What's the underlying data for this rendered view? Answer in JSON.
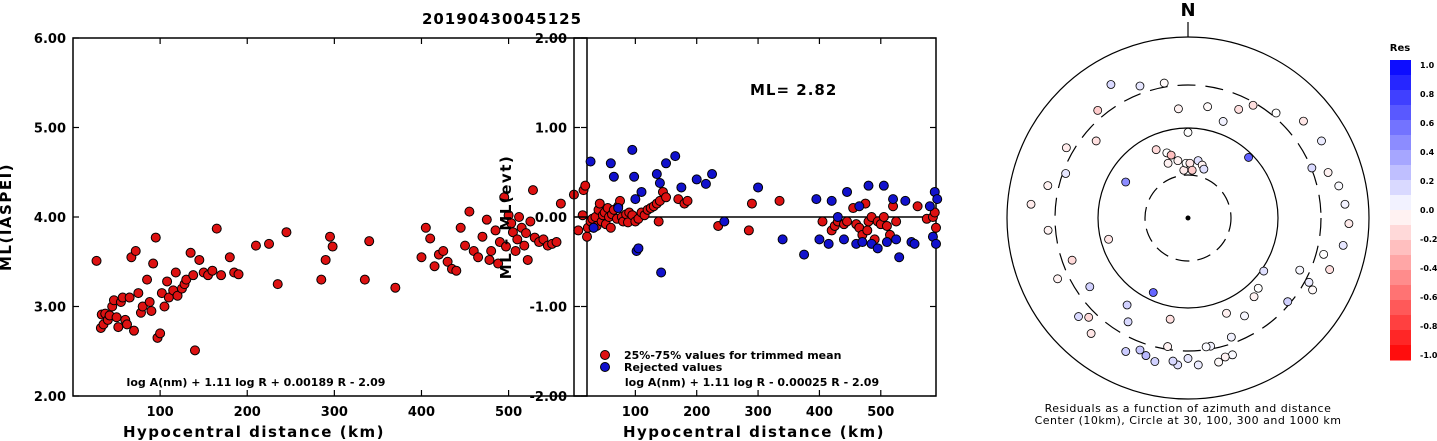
{
  "title": "20190430045125",
  "left_panel": {
    "ylabel": "ML(IASPEI)",
    "xlabel": "Hypocentral distance (km)",
    "formula": "log A(nm) + 1.11 log R + 0.00189 R - 2.09",
    "xticks": [
      "100",
      "200",
      "300",
      "400",
      "500"
    ],
    "yticks": [
      "2.00",
      "3.00",
      "4.00",
      "5.00",
      "6.00"
    ]
  },
  "middle_panel": {
    "ylabel": "ML - ML(evt)",
    "xlabel": "Hypocentral distance (km)",
    "ml_label": "ML= 2.82",
    "legend_trimmed": "25%-75% values for trimmed mean",
    "legend_rejected": "Rejected values",
    "formula": "log A(nm) + 1.11 log R - 0.00025 R - 2.09",
    "xticks": [
      "100",
      "200",
      "300",
      "400",
      "500"
    ],
    "yticks": [
      "-2.00",
      "-1.00",
      "0.00",
      "1.00",
      "2.00"
    ]
  },
  "polar_panel": {
    "north": "N",
    "caption_line1": "Residuals as a function of azimuth and distance",
    "caption_line2": "Center (10km), Circle at 30, 100, 300 and 1000 km"
  },
  "colorbar": {
    "title": "Res",
    "ticks": [
      "1.0",
      "0.8",
      "0.6",
      "0.4",
      "0.2",
      "0.0",
      "-0.2",
      "-0.4",
      "-0.6",
      "-0.8",
      "-1.0"
    ]
  },
  "colors": {
    "trimmed": "#dd1111",
    "rejected": "#1111cc",
    "positive": "#0000ff",
    "negative": "#ff0000"
  },
  "chart_data": [
    {
      "type": "scatter",
      "name": "ML(IASPEI) vs distance",
      "xlim": [
        0,
        590
      ],
      "ylim": [
        2.0,
        6.0
      ],
      "points": [
        [
          27,
          3.51
        ],
        [
          32,
          2.76
        ],
        [
          33,
          2.91
        ],
        [
          35,
          2.8
        ],
        [
          37,
          2.92
        ],
        [
          40,
          2.85
        ],
        [
          42,
          2.9
        ],
        [
          45,
          3.0
        ],
        [
          47,
          3.07
        ],
        [
          50,
          2.88
        ],
        [
          52,
          2.77
        ],
        [
          55,
          3.05
        ],
        [
          57,
          3.1
        ],
        [
          60,
          2.85
        ],
        [
          62,
          2.8
        ],
        [
          65,
          3.1
        ],
        [
          67,
          3.55
        ],
        [
          70,
          2.73
        ],
        [
          72,
          3.62
        ],
        [
          75,
          3.15
        ],
        [
          78,
          2.93
        ],
        [
          80,
          3.0
        ],
        [
          85,
          3.3
        ],
        [
          88,
          3.05
        ],
        [
          90,
          2.95
        ],
        [
          92,
          3.48
        ],
        [
          95,
          3.77
        ],
        [
          97,
          2.65
        ],
        [
          100,
          2.7
        ],
        [
          102,
          3.15
        ],
        [
          105,
          3.0
        ],
        [
          108,
          3.28
        ],
        [
          110,
          3.1
        ],
        [
          115,
          3.18
        ],
        [
          118,
          3.38
        ],
        [
          120,
          3.12
        ],
        [
          125,
          3.2
        ],
        [
          128,
          3.25
        ],
        [
          130,
          3.3
        ],
        [
          135,
          3.6
        ],
        [
          138,
          3.35
        ],
        [
          140,
          2.51
        ],
        [
          145,
          3.52
        ],
        [
          150,
          3.38
        ],
        [
          155,
          3.35
        ],
        [
          160,
          3.4
        ],
        [
          165,
          3.87
        ],
        [
          170,
          3.35
        ],
        [
          180,
          3.55
        ],
        [
          185,
          3.38
        ],
        [
          190,
          3.36
        ],
        [
          210,
          3.68
        ],
        [
          225,
          3.7
        ],
        [
          235,
          3.25
        ],
        [
          245,
          3.83
        ],
        [
          285,
          3.3
        ],
        [
          290,
          3.52
        ],
        [
          295,
          3.78
        ],
        [
          298,
          3.67
        ],
        [
          335,
          3.3
        ],
        [
          340,
          3.73
        ],
        [
          370,
          3.21
        ],
        [
          400,
          3.55
        ],
        [
          405,
          3.88
        ],
        [
          410,
          3.76
        ],
        [
          415,
          3.45
        ],
        [
          420,
          3.58
        ],
        [
          425,
          3.62
        ],
        [
          430,
          3.5
        ],
        [
          435,
          3.42
        ],
        [
          440,
          3.4
        ],
        [
          445,
          3.88
        ],
        [
          450,
          3.68
        ],
        [
          455,
          4.06
        ],
        [
          460,
          3.62
        ],
        [
          465,
          3.55
        ],
        [
          470,
          3.78
        ],
        [
          475,
          3.97
        ],
        [
          478,
          3.52
        ],
        [
          480,
          3.62
        ],
        [
          485,
          3.85
        ],
        [
          488,
          3.48
        ],
        [
          490,
          3.72
        ],
        [
          495,
          4.22
        ],
        [
          497,
          3.67
        ],
        [
          500,
          4.02
        ],
        [
          503,
          3.93
        ],
        [
          505,
          3.83
        ],
        [
          508,
          3.62
        ],
        [
          510,
          3.75
        ],
        [
          512,
          4.0
        ],
        [
          515,
          3.88
        ],
        [
          518,
          3.68
        ],
        [
          520,
          3.82
        ],
        [
          522,
          3.52
        ],
        [
          525,
          3.95
        ],
        [
          528,
          4.3
        ],
        [
          530,
          3.77
        ],
        [
          535,
          3.72
        ],
        [
          540,
          3.75
        ],
        [
          545,
          3.68
        ],
        [
          550,
          3.7
        ],
        [
          555,
          3.72
        ],
        [
          560,
          4.15
        ],
        [
          575,
          4.25
        ],
        [
          580,
          3.85
        ],
        [
          585,
          4.02
        ],
        [
          586,
          4.3
        ],
        [
          588,
          4.35
        ],
        [
          590,
          3.78
        ],
        [
          591,
          3.88
        ]
      ]
    },
    {
      "type": "scatter",
      "name": "ML - ML(evt) vs distance",
      "xlim": [
        0,
        590
      ],
      "ylim": [
        -2.0,
        2.0
      ],
      "trimmed": [
        [
          27,
          -0.05
        ],
        [
          30,
          -0.02
        ],
        [
          32,
          -0.12
        ],
        [
          35,
          0.0
        ],
        [
          37,
          -0.1
        ],
        [
          40,
          0.08
        ],
        [
          42,
          0.15
        ],
        [
          45,
          -0.05
        ],
        [
          47,
          0.02
        ],
        [
          50,
          0.05
        ],
        [
          52,
          -0.08
        ],
        [
          55,
          0.1
        ],
        [
          57,
          0.0
        ],
        [
          60,
          -0.12
        ],
        [
          62,
          0.03
        ],
        [
          65,
          0.08
        ],
        [
          70,
          -0.02
        ],
        [
          72,
          0.12
        ],
        [
          75,
          0.18
        ],
        [
          78,
          0.0
        ],
        [
          80,
          -0.05
        ],
        [
          85,
          0.03
        ],
        [
          88,
          -0.06
        ],
        [
          90,
          0.05
        ],
        [
          95,
          0.02
        ],
        [
          100,
          -0.05
        ],
        [
          105,
          -0.02
        ],
        [
          110,
          0.05
        ],
        [
          115,
          0.02
        ],
        [
          120,
          0.08
        ],
        [
          125,
          0.1
        ],
        [
          130,
          0.12
        ],
        [
          135,
          0.15
        ],
        [
          138,
          -0.05
        ],
        [
          140,
          0.18
        ],
        [
          145,
          0.28
        ],
        [
          150,
          0.22
        ],
        [
          170,
          0.2
        ],
        [
          180,
          0.15
        ],
        [
          185,
          0.18
        ],
        [
          235,
          -0.1
        ],
        [
          285,
          -0.15
        ],
        [
          290,
          0.15
        ],
        [
          335,
          0.18
        ],
        [
          405,
          -0.05
        ],
        [
          420,
          -0.15
        ],
        [
          425,
          -0.1
        ],
        [
          430,
          -0.05
        ],
        [
          440,
          -0.08
        ],
        [
          445,
          -0.05
        ],
        [
          455,
          0.1
        ],
        [
          460,
          -0.08
        ],
        [
          465,
          -0.12
        ],
        [
          470,
          -0.2
        ],
        [
          475,
          0.15
        ],
        [
          478,
          -0.15
        ],
        [
          480,
          -0.05
        ],
        [
          485,
          0.0
        ],
        [
          490,
          -0.25
        ],
        [
          495,
          -0.05
        ],
        [
          500,
          -0.08
        ],
        [
          505,
          0.0
        ],
        [
          510,
          -0.1
        ],
        [
          515,
          -0.2
        ],
        [
          520,
          0.12
        ],
        [
          525,
          -0.05
        ],
        [
          560,
          0.12
        ],
        [
          575,
          -0.02
        ],
        [
          585,
          0.0
        ],
        [
          588,
          0.05
        ],
        [
          590,
          -0.12
        ]
      ],
      "rejected": [
        [
          27,
          0.62
        ],
        [
          32,
          -0.12
        ],
        [
          60,
          0.6
        ],
        [
          65,
          0.45
        ],
        [
          72,
          0.1
        ],
        [
          95,
          0.75
        ],
        [
          98,
          0.45
        ],
        [
          100,
          0.2
        ],
        [
          102,
          -0.38
        ],
        [
          105,
          -0.35
        ],
        [
          110,
          0.28
        ],
        [
          135,
          0.48
        ],
        [
          140,
          0.38
        ],
        [
          142,
          -0.62
        ],
        [
          150,
          0.6
        ],
        [
          165,
          0.68
        ],
        [
          175,
          0.33
        ],
        [
          200,
          0.42
        ],
        [
          215,
          0.37
        ],
        [
          225,
          0.48
        ],
        [
          245,
          -0.05
        ],
        [
          300,
          0.33
        ],
        [
          340,
          -0.25
        ],
        [
          375,
          -0.42
        ],
        [
          395,
          0.2
        ],
        [
          400,
          -0.25
        ],
        [
          415,
          -0.3
        ],
        [
          420,
          0.18
        ],
        [
          430,
          0.0
        ],
        [
          440,
          -0.25
        ],
        [
          445,
          0.28
        ],
        [
          460,
          -0.3
        ],
        [
          465,
          0.12
        ],
        [
          470,
          -0.28
        ],
        [
          480,
          0.35
        ],
        [
          485,
          -0.3
        ],
        [
          495,
          -0.35
        ],
        [
          505,
          0.35
        ],
        [
          510,
          -0.28
        ],
        [
          520,
          0.2
        ],
        [
          525,
          -0.25
        ],
        [
          530,
          -0.45
        ],
        [
          540,
          0.18
        ],
        [
          550,
          -0.28
        ],
        [
          555,
          -0.3
        ],
        [
          580,
          0.12
        ],
        [
          585,
          -0.22
        ],
        [
          588,
          0.28
        ],
        [
          590,
          -0.3
        ],
        [
          592,
          0.2
        ]
      ]
    },
    {
      "type": "scatter",
      "name": "Residuals vs azimuth and distance",
      "points": [
        [
          355,
          32
        ],
        [
          10,
          33
        ],
        [
          25,
          35
        ],
        [
          40,
          40
        ],
        [
          50,
          44
        ],
        [
          60,
          45
        ],
        [
          68,
          39
        ],
        [
          72,
          43
        ],
        [
          78,
          45
        ],
        [
          85,
          46
        ],
        [
          92,
          47
        ],
        [
          100,
          46
        ],
        [
          105,
          41
        ],
        [
          110,
          44
        ],
        [
          115,
          36
        ],
        [
          118,
          40
        ],
        [
          120,
          42
        ],
        [
          125,
          27
        ],
        [
          130,
          38
        ],
        [
          135,
          29
        ],
        [
          140,
          30
        ],
        [
          150,
          33
        ],
        [
          158,
          30
        ],
        [
          160,
          37
        ],
        [
          162,
          42
        ],
        [
          165,
          42
        ],
        [
          168,
          43
        ],
        [
          170,
          38
        ],
        [
          172,
          38
        ],
        [
          176,
          43
        ],
        [
          180,
          41
        ],
        [
          184,
          43
        ],
        [
          186,
          42
        ],
        [
          189,
          38
        ],
        [
          193,
          43
        ],
        [
          197,
          42
        ],
        [
          200,
          41
        ],
        [
          205,
          43
        ],
        [
          210,
          35
        ],
        [
          215,
          31
        ],
        [
          220,
          44
        ],
        [
          225,
          41
        ],
        [
          228,
          43
        ],
        [
          235,
          35
        ],
        [
          245,
          42
        ],
        [
          250,
          36
        ],
        [
          255,
          24
        ],
        [
          265,
          41
        ],
        [
          275,
          46
        ],
        [
          283,
          42
        ],
        [
          290,
          38
        ],
        [
          300,
          41
        ],
        [
          310,
          35
        ],
        [
          320,
          41
        ],
        [
          330,
          45
        ],
        [
          335,
          22
        ],
        [
          340,
          17
        ],
        [
          342,
          20
        ],
        [
          345,
          19
        ],
        [
          350,
          17
        ],
        [
          355,
          14
        ],
        [
          358,
          16
        ],
        [
          2,
          16
        ],
        [
          5,
          14
        ],
        [
          10,
          17
        ],
        [
          15,
          16
        ],
        [
          18,
          15
        ],
        [
          350,
          40
        ],
        [
          0,
          25
        ],
        [
          20,
          30
        ],
        [
          30,
          38
        ],
        [
          45,
          25
        ],
        [
          190,
          30
        ],
        [
          205,
          24
        ],
        [
          300,
          21
        ],
        [
          340,
          41
        ]
      ]
    }
  ]
}
